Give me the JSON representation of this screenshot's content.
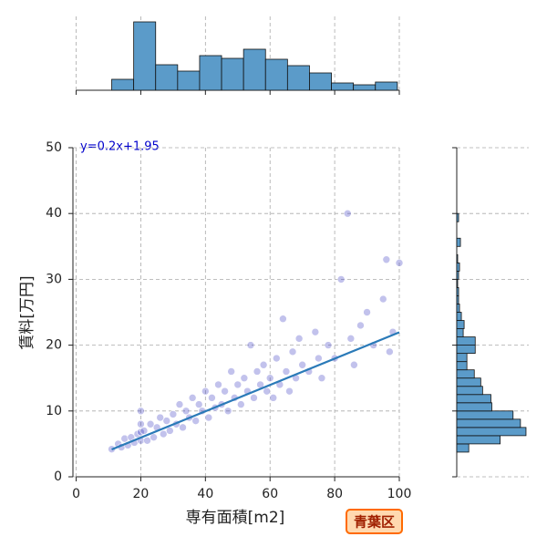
{
  "chart_data": {
    "type": "jointplot",
    "xlabel": "専有面積[m2]",
    "ylabel": "賃料[万円]",
    "annotation": "y=0.2x+1.95",
    "badge": "青葉区",
    "xlim": [
      -1,
      100
    ],
    "ylim": [
      0,
      50
    ],
    "xticks": [
      0,
      20,
      40,
      60,
      80,
      100
    ],
    "yticks": [
      0,
      10,
      20,
      30,
      40,
      50
    ],
    "grid": true,
    "point_color": "#3535c0",
    "line_color": "#2a7ab8",
    "hist_color": "#5b9bc9",
    "x": [
      11,
      13,
      14,
      15,
      16,
      17,
      18,
      19,
      20,
      20,
      20,
      20,
      21,
      22,
      23,
      24,
      25,
      26,
      27,
      28,
      29,
      30,
      31,
      32,
      33,
      34,
      35,
      36,
      37,
      38,
      39,
      40,
      41,
      42,
      43,
      44,
      45,
      46,
      47,
      48,
      49,
      50,
      51,
      52,
      53,
      54,
      55,
      56,
      57,
      58,
      59,
      60,
      61,
      62,
      63,
      64,
      65,
      66,
      67,
      68,
      69,
      70,
      72,
      74,
      75,
      76,
      78,
      80,
      82,
      84,
      85,
      86,
      88,
      90,
      92,
      95,
      96,
      97,
      98,
      100
    ],
    "y": [
      4.2,
      5,
      4.5,
      5.8,
      4.8,
      6,
      5.2,
      6.5,
      10,
      8,
      5.5,
      6.8,
      7,
      5.5,
      8,
      6,
      7.5,
      9,
      6.5,
      8.5,
      7,
      9.5,
      8,
      11,
      7.5,
      10,
      9,
      12,
      8.5,
      11,
      10,
      13,
      9,
      12,
      10.5,
      14,
      11,
      13,
      10,
      16,
      12,
      14,
      11,
      15,
      13,
      20,
      12,
      16,
      14,
      17,
      13,
      15,
      12,
      18,
      14,
      24,
      16,
      13,
      19,
      15,
      21,
      17,
      16,
      22,
      18,
      15,
      20,
      18,
      30,
      40,
      21,
      17,
      23,
      25,
      20,
      27,
      33,
      19,
      22,
      32.5
    ],
    "fit": {
      "slope": 0.2,
      "intercept": 1.95,
      "xrange": [
        11,
        100
      ]
    },
    "top_hist": {
      "bins": [
        11,
        17.8,
        24.6,
        31.4,
        38.2,
        45,
        51.8,
        58.6,
        65.4,
        72.2,
        79,
        85.8,
        92.6,
        99.4
      ],
      "counts": [
        12,
        75,
        28,
        21,
        38,
        35,
        45,
        34,
        27,
        19,
        8,
        6,
        9
      ],
      "ylim": [
        0,
        81
      ]
    },
    "right_hist": {
      "bins": [
        3.75,
        5,
        6.25,
        7.5,
        8.75,
        10,
        11.25,
        12.5,
        13.75,
        15,
        16.25,
        17.5,
        18.75,
        20,
        21.25,
        22.5,
        23.75,
        25,
        26.25,
        27.5,
        28.75,
        30,
        31.25,
        32.5,
        33.75,
        35,
        36.25,
        37.5,
        38.75,
        40
      ],
      "counts": [
        13,
        47,
        75,
        69,
        61,
        38,
        37,
        28,
        26,
        19,
        11,
        11,
        20,
        20,
        7,
        8,
        5,
        3,
        2,
        2,
        1,
        2,
        3,
        1,
        0,
        4,
        0,
        0,
        2
      ],
      "xlim": [
        0,
        78
      ]
    }
  }
}
